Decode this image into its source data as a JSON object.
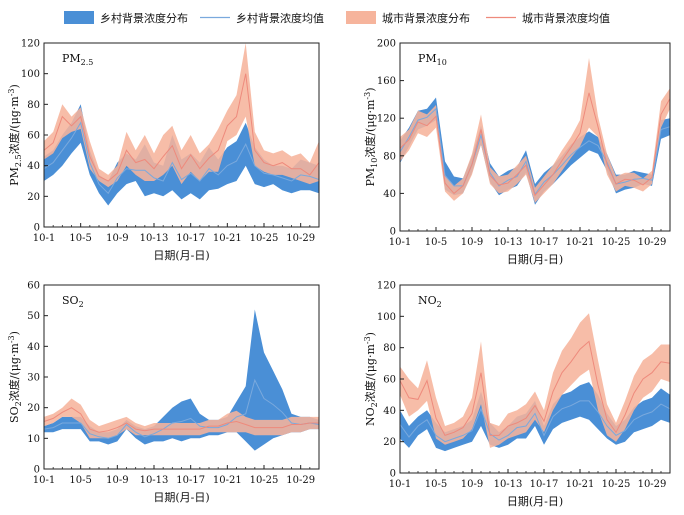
{
  "legend": {
    "rural_band": "乡村背景浓度分布",
    "rural_mean": "乡村背景浓度均值",
    "urban_band": "城市背景浓度分布",
    "urban_mean": "城市背景浓度均值"
  },
  "colors": {
    "rural_band": "#4a8fd6",
    "rural_mean": "#7aa9dd",
    "urban_band": "#f6b49c",
    "urban_mean": "#ee8a7c"
  },
  "chart_data": [
    {
      "type": "area",
      "pollutant": "PM₂.₅",
      "label_main": "PM",
      "label_sub": "2.5",
      "ylabel_prefix": "PM",
      "ylabel_sub": "2.5",
      "ylabel_suffix": "浓度/(μg·m",
      "ylabel_sup": "-3",
      "ylabel_close": ")",
      "xlabel": "日期(月-日)",
      "xticks": [
        "10-1",
        "10-5",
        "10-9",
        "10-13",
        "10-17",
        "10-21",
        "10-25",
        "10-29"
      ],
      "xlim": [
        1,
        31
      ],
      "ylim": [
        0,
        120
      ],
      "yticks": [
        "0",
        "20",
        "40",
        "60",
        "80",
        "100",
        "120"
      ],
      "x": [
        1,
        2,
        3,
        4,
        5,
        6,
        7,
        8,
        9,
        10,
        11,
        12,
        13,
        14,
        15,
        16,
        17,
        18,
        19,
        20,
        21,
        22,
        23,
        24,
        25,
        26,
        27,
        28,
        29,
        30,
        31
      ],
      "series": [
        {
          "name": "乡村背景浓度分布",
          "kind": "band",
          "lower": [
            30,
            34,
            40,
            48,
            55,
            34,
            22,
            14,
            22,
            28,
            30,
            20,
            22,
            20,
            24,
            18,
            22,
            18,
            24,
            25,
            28,
            30,
            40,
            28,
            26,
            28,
            24,
            22,
            24,
            24,
            22
          ],
          "upper": [
            46,
            50,
            60,
            68,
            80,
            50,
            34,
            30,
            42,
            48,
            44,
            54,
            42,
            40,
            60,
            44,
            48,
            42,
            52,
            44,
            52,
            56,
            68,
            52,
            44,
            40,
            40,
            38,
            44,
            42,
            40
          ]
        },
        {
          "name": "乡村背景浓度均值",
          "kind": "mean",
          "values": [
            38,
            42,
            50,
            58,
            68,
            42,
            28,
            22,
            32,
            38,
            37,
            37,
            32,
            30,
            42,
            31,
            35,
            30,
            38,
            34,
            40,
            43,
            54,
            40,
            35,
            34,
            32,
            30,
            34,
            33,
            31
          ]
        },
        {
          "name": "城市背景浓度分布",
          "kind": "band",
          "lower": [
            44,
            48,
            58,
            62,
            64,
            38,
            30,
            26,
            30,
            40,
            34,
            30,
            30,
            34,
            40,
            28,
            36,
            30,
            36,
            36,
            56,
            60,
            72,
            40,
            36,
            34,
            34,
            32,
            30,
            28,
            30
          ],
          "upper": [
            56,
            62,
            80,
            72,
            78,
            56,
            38,
            34,
            40,
            62,
            50,
            60,
            48,
            60,
            66,
            50,
            60,
            48,
            54,
            64,
            76,
            86,
            120,
            62,
            50,
            48,
            50,
            46,
            48,
            42,
            56
          ]
        },
        {
          "name": "城市背景浓度均值",
          "kind": "mean",
          "values": [
            50,
            55,
            72,
            66,
            72,
            46,
            33,
            30,
            35,
            50,
            42,
            44,
            38,
            46,
            53,
            38,
            47,
            38,
            45,
            50,
            66,
            72,
            100,
            50,
            42,
            40,
            42,
            38,
            38,
            34,
            42
          ]
        }
      ]
    },
    {
      "type": "area",
      "pollutant": "PM₁₀",
      "label_main": "PM",
      "label_sub": "10",
      "ylabel_prefix": "PM",
      "ylabel_sub": "10",
      "ylabel_suffix": "浓度/(μg·m",
      "ylabel_sup": "-3",
      "ylabel_close": ")",
      "xlabel": "日期(月-日)",
      "xticks": [
        "10-1",
        "10-5",
        "10-9",
        "10-13",
        "10-17",
        "10-21",
        "10-25",
        "10-29"
      ],
      "xlim": [
        1,
        31
      ],
      "ylim": [
        0,
        200
      ],
      "yticks": [
        "0",
        "40",
        "80",
        "120",
        "160",
        "200"
      ],
      "x": [
        1,
        2,
        3,
        4,
        5,
        6,
        7,
        8,
        9,
        10,
        11,
        12,
        13,
        14,
        15,
        16,
        17,
        18,
        19,
        20,
        21,
        22,
        23,
        24,
        25,
        26,
        27,
        28,
        29,
        30,
        31
      ],
      "series": [
        {
          "name": "乡村背景浓度分布",
          "kind": "band",
          "lower": [
            72,
            90,
            108,
            112,
            118,
            44,
            38,
            40,
            62,
            92,
            52,
            38,
            44,
            48,
            62,
            28,
            42,
            50,
            60,
            70,
            78,
            86,
            82,
            64,
            40,
            44,
            46,
            50,
            48,
            98,
            102
          ],
          "upper": [
            96,
            110,
            128,
            130,
            142,
            74,
            58,
            56,
            80,
            112,
            72,
            58,
            64,
            68,
            86,
            50,
            62,
            70,
            80,
            92,
            100,
            106,
            100,
            82,
            60,
            60,
            64,
            62,
            60,
            118,
            120
          ]
        },
        {
          "name": "乡村背景浓度均值",
          "kind": "mean",
          "values": [
            84,
            100,
            118,
            121,
            130,
            59,
            48,
            48,
            71,
            102,
            62,
            48,
            54,
            58,
            74,
            39,
            52,
            60,
            70,
            81,
            89,
            96,
            91,
            73,
            50,
            52,
            55,
            56,
            54,
            108,
            111
          ]
        },
        {
          "name": "城市背景浓度分布",
          "kind": "band",
          "lower": [
            74,
            86,
            104,
            100,
            110,
            42,
            32,
            40,
            60,
            92,
            50,
            40,
            42,
            50,
            60,
            30,
            40,
            50,
            64,
            78,
            90,
            110,
            100,
            60,
            42,
            48,
            46,
            42,
            50,
            110,
            130
          ],
          "upper": [
            100,
            108,
            128,
            124,
            134,
            60,
            48,
            56,
            82,
            124,
            68,
            58,
            60,
            70,
            80,
            46,
            58,
            70,
            86,
            100,
            118,
            184,
            122,
            82,
            58,
            62,
            62,
            56,
            64,
            138,
            152
          ]
        },
        {
          "name": "城市背景浓度均值",
          "kind": "mean",
          "values": [
            88,
            97,
            116,
            112,
            122,
            51,
            40,
            48,
            71,
            108,
            59,
            49,
            51,
            60,
            70,
            38,
            49,
            60,
            75,
            89,
            104,
            147,
            111,
            71,
            50,
            55,
            54,
            49,
            57,
            124,
            141
          ]
        }
      ]
    },
    {
      "type": "area",
      "pollutant": "SO₂",
      "label_main": "SO",
      "label_sub": "2",
      "ylabel_prefix": "SO",
      "ylabel_sub": "2",
      "ylabel_suffix": "浓度/(μg·m",
      "ylabel_sup": "-3",
      "ylabel_close": ")",
      "xlabel": "日期(月-日)",
      "xticks": [
        "10-1",
        "10-5",
        "10-9",
        "10-13",
        "10-17",
        "10-21",
        "10-25",
        "10-29"
      ],
      "xlim": [
        1,
        31
      ],
      "ylim": [
        0,
        60
      ],
      "yticks": [
        "0",
        "10",
        "20",
        "30",
        "40",
        "50",
        "60"
      ],
      "x": [
        1,
        2,
        3,
        4,
        5,
        6,
        7,
        8,
        9,
        10,
        11,
        12,
        13,
        14,
        15,
        16,
        17,
        18,
        19,
        20,
        21,
        22,
        23,
        24,
        25,
        26,
        27,
        28,
        29,
        30,
        31
      ],
      "series": [
        {
          "name": "乡村背景浓度分布",
          "kind": "band",
          "lower": [
            12,
            12,
            13,
            13,
            13,
            9,
            9,
            8,
            9,
            13,
            10,
            8,
            9,
            9,
            10,
            9,
            10,
            10,
            11,
            11,
            12,
            12,
            9,
            6,
            8,
            10,
            11,
            12,
            12,
            13,
            13
          ],
          "upper": [
            14,
            15,
            17,
            17,
            17,
            14,
            12,
            12,
            13,
            16,
            14,
            13,
            14,
            17,
            20,
            22,
            23,
            18,
            16,
            16,
            17,
            22,
            27,
            52,
            38,
            32,
            26,
            18,
            17,
            17,
            16
          ]
        },
        {
          "name": "乡村背景浓度均值",
          "kind": "mean",
          "values": [
            13,
            13.5,
            15,
            15,
            15,
            11.5,
            10.5,
            10,
            11,
            14.5,
            12,
            10.5,
            11.5,
            13,
            15,
            15.5,
            16.5,
            14,
            13.5,
            13.5,
            14.5,
            17,
            18,
            29,
            23,
            21,
            18.5,
            15,
            14.5,
            15,
            14.5
          ]
        },
        {
          "name": "城市背景浓度分布",
          "kind": "band",
          "lower": [
            14,
            15,
            17,
            17,
            15,
            10,
            10,
            10,
            11,
            13,
            11,
            11,
            11,
            11,
            11,
            11,
            11,
            11,
            12,
            12,
            12,
            12,
            12,
            11,
            11,
            11,
            11,
            12,
            12,
            13,
            13
          ],
          "upper": [
            17,
            18,
            20,
            23,
            21,
            16,
            14,
            15,
            16,
            17,
            15,
            14,
            15,
            15,
            15,
            15,
            15,
            15,
            16,
            16,
            18,
            19,
            17,
            16,
            16,
            16,
            16,
            17,
            17,
            17,
            17
          ]
        },
        {
          "name": "城市背景浓度均值",
          "kind": "mean",
          "values": [
            15.5,
            16.5,
            18.5,
            20,
            18,
            13,
            12,
            12.5,
            13.5,
            15,
            13,
            12.5,
            13,
            13,
            13,
            13,
            13,
            13,
            14,
            14,
            15,
            15.5,
            14.5,
            13.5,
            13.5,
            13.5,
            13.5,
            14.5,
            14.5,
            15,
            15
          ]
        }
      ]
    },
    {
      "type": "area",
      "pollutant": "NO₂",
      "label_main": "NO",
      "label_sub": "2",
      "ylabel_prefix": "NO",
      "ylabel_sub": "2",
      "ylabel_suffix": "浓度/(μg·m",
      "ylabel_sup": "-3",
      "ylabel_close": ")",
      "xlabel": "日期(月-日)",
      "xticks": [
        "10-1",
        "10-5",
        "10-9",
        "10-13",
        "10-17",
        "10-21",
        "10-25",
        "10-29"
      ],
      "xlim": [
        1,
        31
      ],
      "ylim": [
        0,
        120
      ],
      "yticks": [
        "0",
        "20",
        "40",
        "60",
        "80",
        "100",
        "120"
      ],
      "x": [
        1,
        2,
        3,
        4,
        5,
        6,
        7,
        8,
        9,
        10,
        11,
        12,
        13,
        14,
        15,
        16,
        17,
        18,
        19,
        20,
        21,
        22,
        23,
        24,
        25,
        26,
        27,
        28,
        29,
        30,
        31
      ],
      "series": [
        {
          "name": "乡村背景浓度分布",
          "kind": "band",
          "lower": [
            22,
            16,
            24,
            28,
            16,
            14,
            16,
            18,
            20,
            30,
            18,
            16,
            18,
            22,
            22,
            30,
            18,
            28,
            32,
            34,
            36,
            34,
            28,
            22,
            18,
            20,
            26,
            28,
            30,
            34,
            32
          ],
          "upper": [
            40,
            30,
            36,
            40,
            32,
            26,
            28,
            30,
            34,
            52,
            32,
            26,
            30,
            36,
            38,
            46,
            30,
            44,
            50,
            52,
            56,
            58,
            50,
            38,
            30,
            34,
            42,
            46,
            48,
            54,
            50
          ]
        },
        {
          "name": "乡村背景浓度均值",
          "kind": "mean",
          "values": [
            31,
            23,
            30,
            34,
            24,
            20,
            22,
            24,
            27,
            41,
            25,
            21,
            24,
            29,
            30,
            38,
            24,
            36,
            41,
            43,
            46,
            46,
            39,
            30,
            24,
            27,
            34,
            37,
            39,
            44,
            41
          ]
        },
        {
          "name": "城市背景浓度分布",
          "kind": "band",
          "lower": [
            50,
            36,
            40,
            46,
            22,
            18,
            20,
            22,
            28,
            44,
            16,
            18,
            22,
            24,
            26,
            34,
            26,
            40,
            50,
            56,
            62,
            66,
            40,
            24,
            20,
            28,
            40,
            48,
            52,
            60,
            58
          ],
          "upper": [
            68,
            60,
            54,
            72,
            48,
            30,
            32,
            36,
            48,
            84,
            32,
            30,
            38,
            40,
            44,
            52,
            40,
            64,
            78,
            86,
            96,
            102,
            72,
            44,
            32,
            46,
            62,
            72,
            76,
            82,
            82
          ]
        },
        {
          "name": "城市背景浓度均值",
          "kind": "mean",
          "values": [
            59,
            48,
            47,
            59,
            35,
            24,
            26,
            29,
            38,
            64,
            24,
            24,
            30,
            32,
            35,
            43,
            33,
            52,
            64,
            71,
            79,
            84,
            56,
            34,
            26,
            37,
            51,
            60,
            64,
            71,
            70
          ]
        }
      ]
    }
  ]
}
